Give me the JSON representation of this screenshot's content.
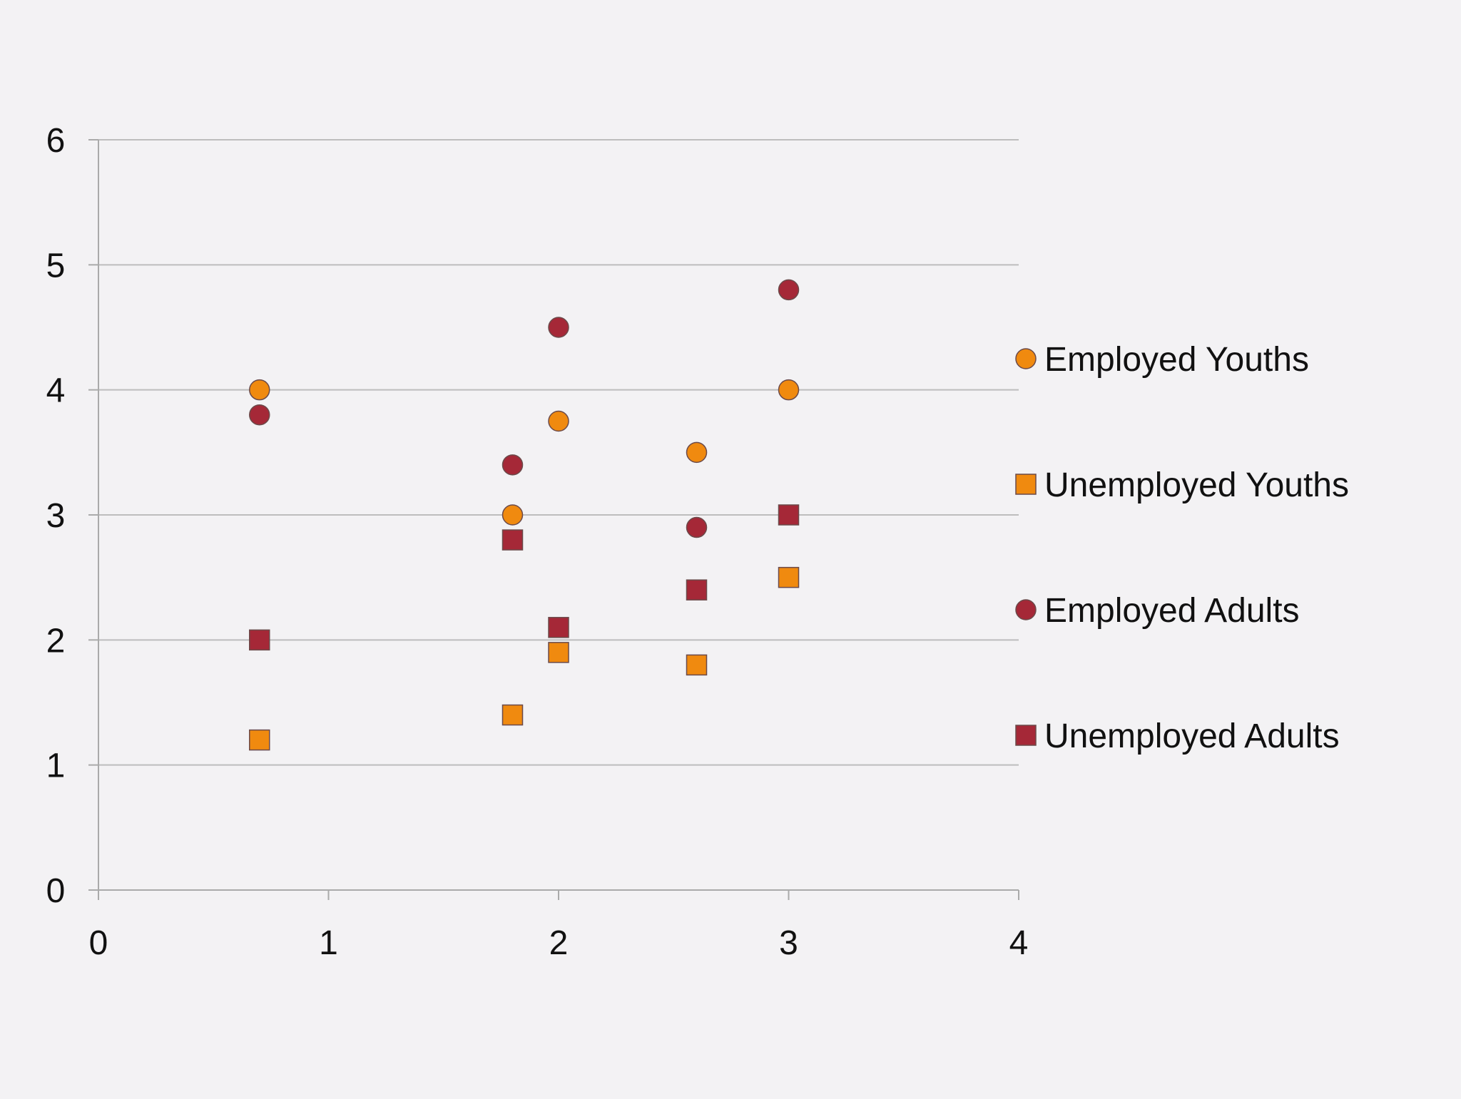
{
  "chart_data": {
    "type": "scatter",
    "title": "",
    "xlabel": "",
    "ylabel": "",
    "xlim": [
      0,
      4
    ],
    "ylim": [
      0,
      6
    ],
    "x_ticks": [
      0,
      1,
      2,
      3,
      4
    ],
    "y_ticks": [
      0,
      1,
      2,
      3,
      4,
      5,
      6
    ],
    "grid": "horizontal",
    "legend_position": "right",
    "series": [
      {
        "name": "Employed Youths",
        "marker": "circle",
        "color": "#f08a0f",
        "points": [
          {
            "x": 0.7,
            "y": 4.0
          },
          {
            "x": 1.8,
            "y": 3.0
          },
          {
            "x": 2.0,
            "y": 3.75
          },
          {
            "x": 2.6,
            "y": 3.5
          },
          {
            "x": 3.0,
            "y": 4.0
          }
        ]
      },
      {
        "name": "Unemployed Youths",
        "marker": "square",
        "color": "#f08a0f",
        "points": [
          {
            "x": 0.7,
            "y": 1.2
          },
          {
            "x": 1.8,
            "y": 1.4
          },
          {
            "x": 2.0,
            "y": 1.9
          },
          {
            "x": 2.6,
            "y": 1.8
          },
          {
            "x": 3.0,
            "y": 2.5
          }
        ]
      },
      {
        "name": "Employed Adults",
        "marker": "circle",
        "color": "#a52837",
        "points": [
          {
            "x": 0.7,
            "y": 3.8
          },
          {
            "x": 1.8,
            "y": 3.4
          },
          {
            "x": 2.0,
            "y": 4.5
          },
          {
            "x": 2.6,
            "y": 2.9
          },
          {
            "x": 3.0,
            "y": 4.8
          }
        ]
      },
      {
        "name": "Unemployed Adults",
        "marker": "square",
        "color": "#a52837",
        "points": [
          {
            "x": 0.7,
            "y": 2.0
          },
          {
            "x": 1.8,
            "y": 2.8
          },
          {
            "x": 2.0,
            "y": 2.1
          },
          {
            "x": 2.6,
            "y": 2.4
          },
          {
            "x": 3.0,
            "y": 3.0
          }
        ]
      }
    ]
  },
  "colors": {
    "background": "#f3f2f4",
    "gridline": "#bdbdbd",
    "axis": "#aaaaaa",
    "marker_stroke": "#6b4a4a",
    "text": "#111111"
  }
}
